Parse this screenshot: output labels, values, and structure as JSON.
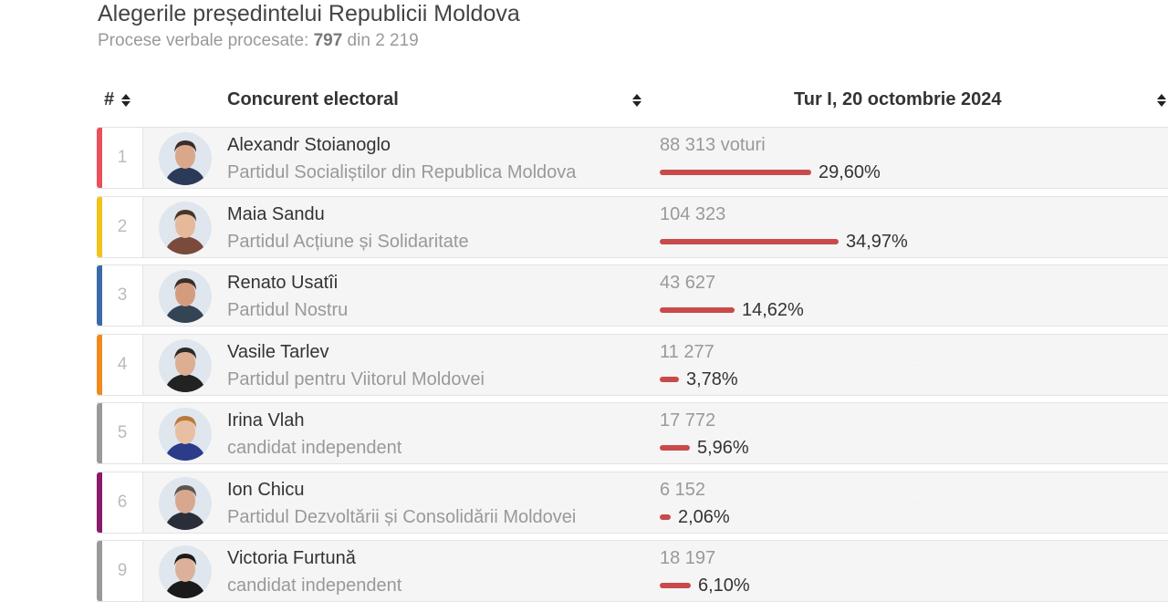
{
  "header": {
    "title": "Alegerile președintelui Republicii Moldova",
    "subtitle_prefix": "Procese verbale procesate: ",
    "processed": "797",
    "subtitle_mid": " din ",
    "total": "2 219"
  },
  "table": {
    "col_index": "#",
    "col_candidate": "Concurent electoral",
    "col_round": "Tur I, 20 octombrie 2024"
  },
  "rows": [
    {
      "index": "1",
      "name": "Alexandr Stoianoglo",
      "party": "Partidul Socialiștilor din Republica Moldova",
      "votes": "88 313 voturi",
      "percent": "29,60%",
      "share": 29.6,
      "accent": "#e8505b",
      "skin": "#d9a88a",
      "hair": "#3a2e28",
      "shirt": "#2c3a5a"
    },
    {
      "index": "2",
      "name": "Maia Sandu",
      "party": "Partidul Acțiune și Solidaritate",
      "votes": "104 323",
      "percent": "34,97%",
      "share": 34.97,
      "accent": "#f2c318",
      "skin": "#e5b99a",
      "hair": "#4a3428",
      "shirt": "#7a4a3a"
    },
    {
      "index": "3",
      "name": "Renato Usatîi",
      "party": "Partidul Nostru",
      "votes": "43 627",
      "percent": "14,62%",
      "share": 14.62,
      "accent": "#3a6aa8",
      "skin": "#d49c7e",
      "hair": "#3b2f2a",
      "shirt": "#334455"
    },
    {
      "index": "4",
      "name": "Vasile Tarlev",
      "party": "Partidul pentru Viitorul Moldovei",
      "votes": "11 277",
      "percent": "3,78%",
      "share": 3.78,
      "accent": "#f08a1c",
      "skin": "#dcae92",
      "hair": "#2e2a28",
      "shirt": "#222222"
    },
    {
      "index": "5",
      "name": "Irina Vlah",
      "party": "candidat independent",
      "votes": "17 772",
      "percent": "5,96%",
      "share": 5.96,
      "accent": "#999999",
      "skin": "#e8bfa2",
      "hair": "#b87a3c",
      "shirt": "#2a3c8a"
    },
    {
      "index": "6",
      "name": "Ion Chicu",
      "party": "Partidul Dezvoltării și Consolidării Moldovei",
      "votes": "6 152",
      "percent": "2,06%",
      "share": 2.06,
      "accent": "#8a1a6a",
      "skin": "#d8a88e",
      "hair": "#5a5650",
      "shirt": "#2a2e3a"
    },
    {
      "index": "9",
      "name": "Victoria Furtună",
      "party": "candidat independent",
      "votes": "18 197",
      "percent": "6,10%",
      "share": 6.1,
      "accent": "#999999",
      "skin": "#dcb09a",
      "hair": "#1e1a1a",
      "shirt": "#1a1a1a"
    }
  ]
}
